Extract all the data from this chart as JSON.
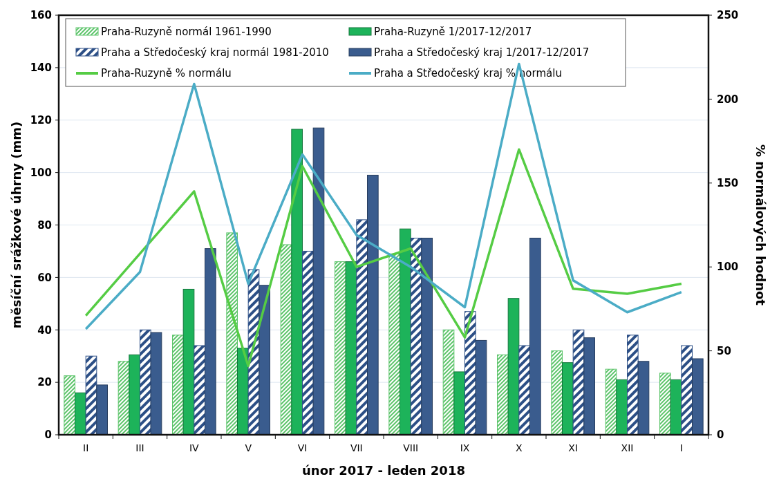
{
  "chart_data": {
    "type": "bar",
    "xlabel": "únor 2017 - leden 2018",
    "ylabel": "měsíční srážkové úhrny (mm)",
    "y2label": "% normálových hodnot",
    "categories": [
      "II",
      "III",
      "IV",
      "V",
      "VI",
      "VII",
      "VIII",
      "IX",
      "X",
      "XI",
      "XII",
      "I"
    ],
    "series": [
      {
        "name": "Praha-Ruzyně normál 1961-1990",
        "color": "#5cc46a",
        "values": [
          22.5,
          28,
          38,
          77,
          72.5,
          66,
          69,
          40,
          30.5,
          32,
          25,
          23.5
        ]
      },
      {
        "name": "Praha-Ruzyně 1/2017-12/2017",
        "color": "#1db35a",
        "values": [
          16,
          30.5,
          55.5,
          33,
          116.5,
          66,
          78.5,
          24,
          52,
          27.5,
          21,
          21
        ]
      },
      {
        "name": "Praha a Středočeský kraj normál 1981-2010",
        "color": "#2c4f86",
        "values": [
          30,
          40,
          34,
          63,
          70,
          82,
          75,
          47,
          34,
          40,
          38,
          34
        ]
      },
      {
        "name": "Praha a Středočeský kraj 1/2017-12/2017",
        "color": "#3a5c8e",
        "values": [
          19,
          39,
          71,
          57,
          117,
          99,
          75,
          36,
          75,
          37,
          28,
          29
        ]
      },
      {
        "name": "Praha-Ruzyně % normálu",
        "type": "line",
        "axis": "y2",
        "color": "#55cc44",
        "values": [
          71,
          108,
          145,
          41,
          160,
          100,
          111,
          58,
          170,
          87,
          84,
          90
        ]
      },
      {
        "name": "Praha a Středočeský kraj % normálu",
        "type": "line",
        "axis": "y2",
        "color": "#4bacc6",
        "values": [
          63,
          97,
          209,
          90,
          167,
          119,
          100,
          76,
          221,
          92,
          73,
          85
        ]
      }
    ],
    "ylim": [
      0,
      160
    ],
    "yticks": [
      0,
      20,
      40,
      60,
      80,
      100,
      120,
      140,
      160
    ],
    "y2lim": [
      0,
      250
    ],
    "y2ticks": [
      0,
      50,
      100,
      150,
      200,
      250
    ],
    "grid": "y",
    "legend": "top",
    "marker": "none",
    "line_style": "solid"
  }
}
